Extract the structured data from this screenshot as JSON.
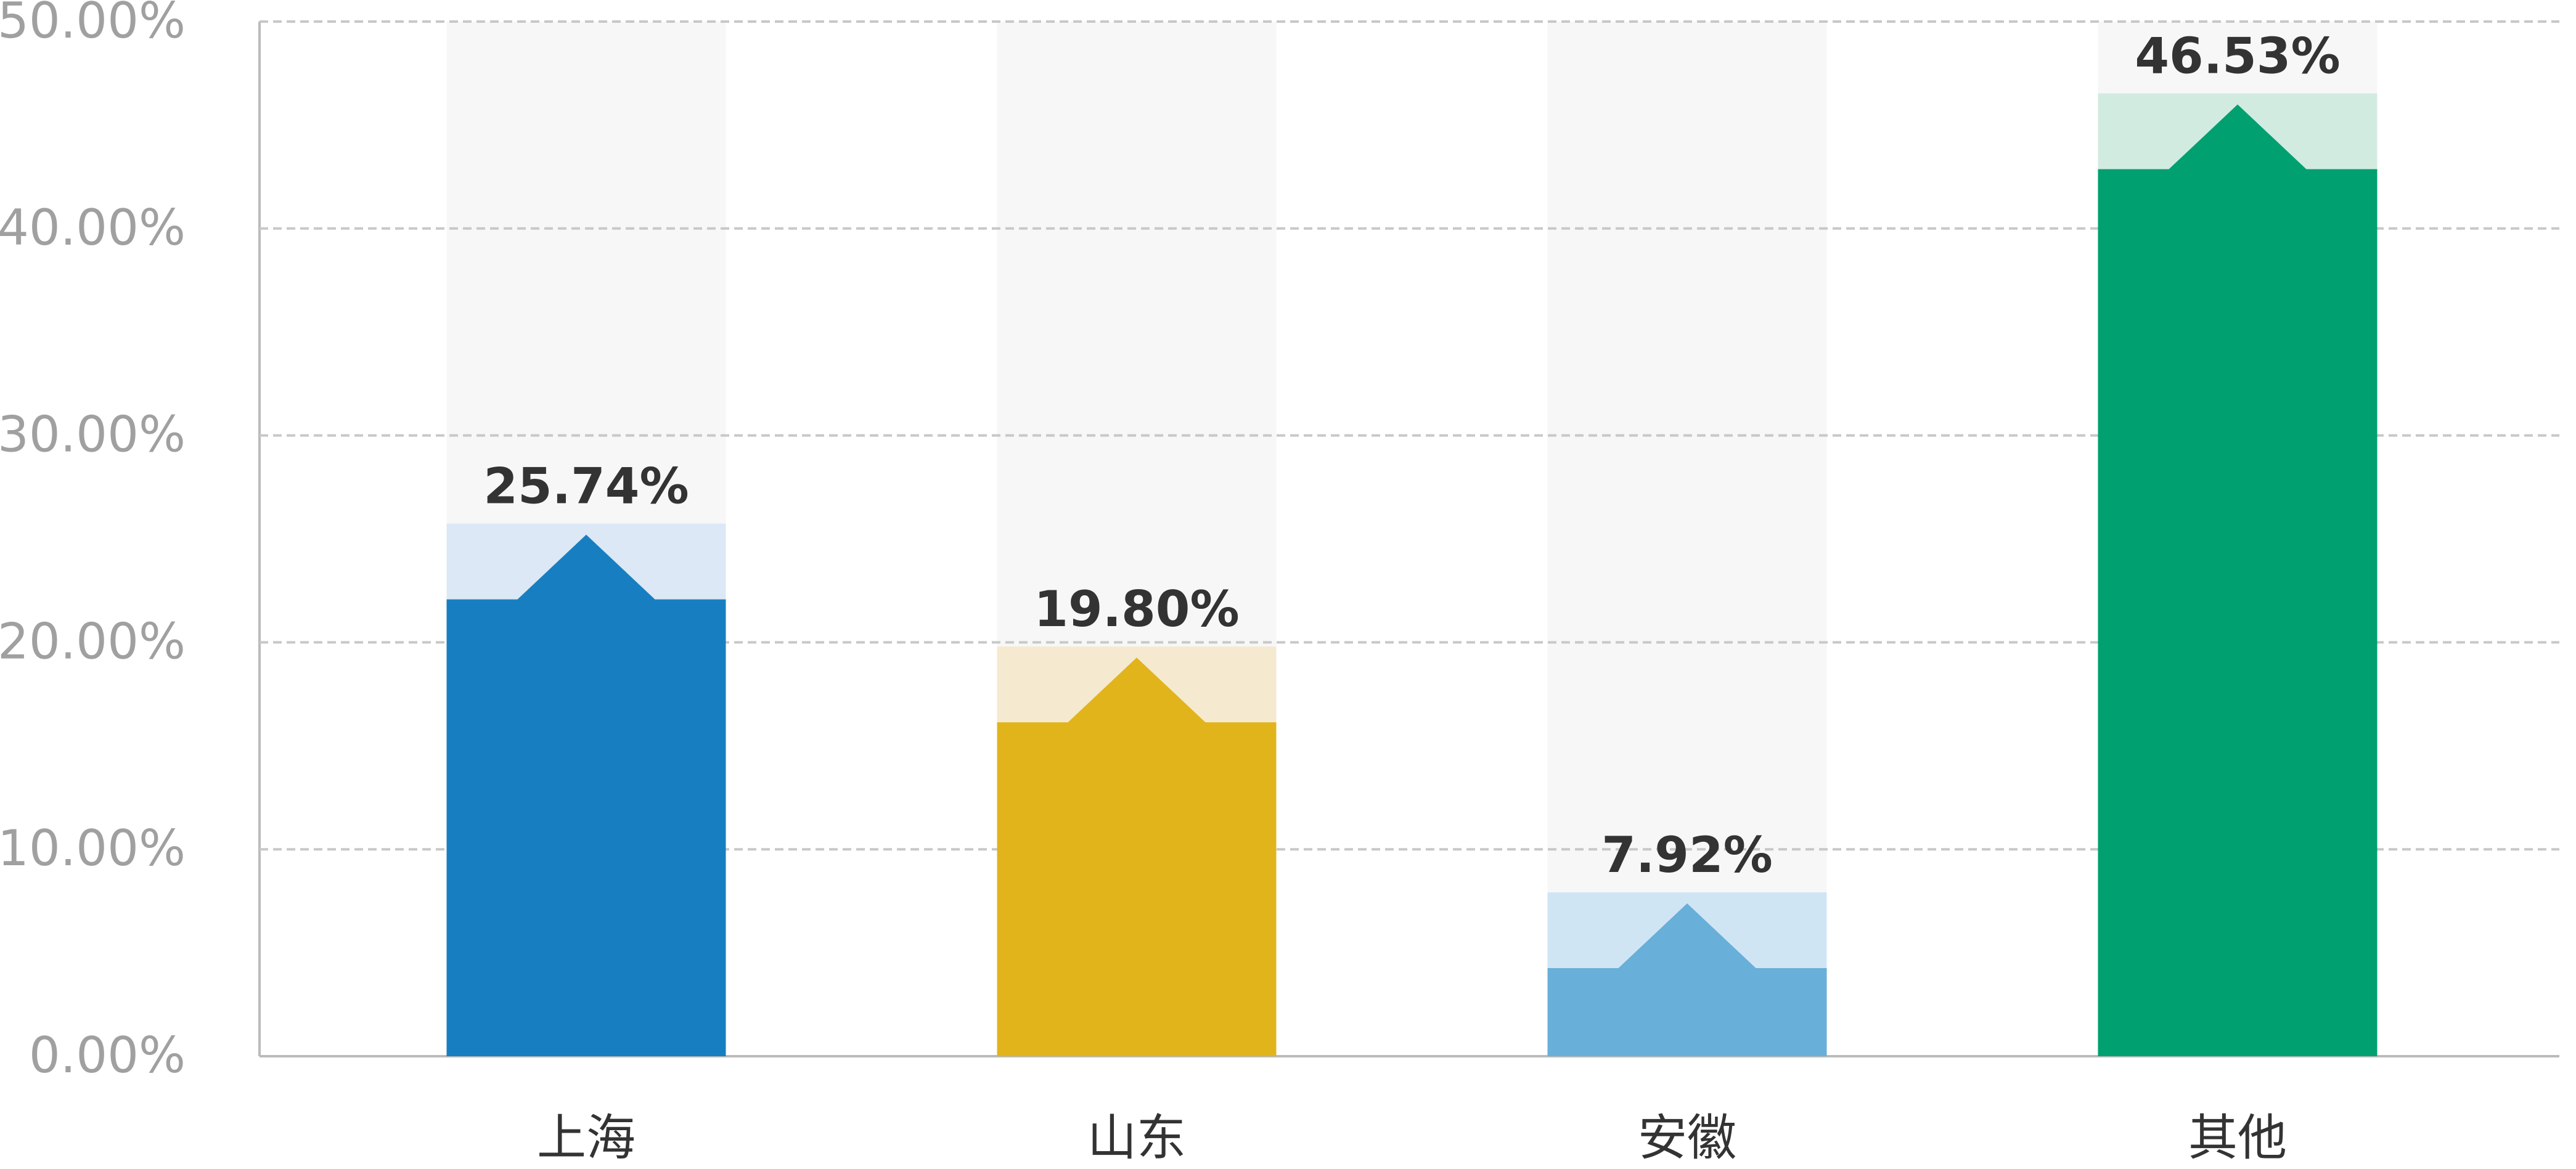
{
  "chart_data": {
    "type": "bar",
    "categories": [
      "上海",
      "山东",
      "安徽",
      "其他"
    ],
    "values": [
      25.74,
      19.8,
      7.92,
      46.53
    ],
    "value_labels": [
      "25.74%",
      "19.80%",
      "7.92%",
      "46.53%"
    ],
    "colors": [
      "#177fc1",
      "#e2b41c",
      "#68afd9",
      "#00a070"
    ],
    "highlight_colors": [
      "#dce8f5",
      "#f5ead0",
      "#d0e5f4",
      "#d2ebe1"
    ],
    "ylim": [
      0,
      50
    ],
    "yticks": [
      {
        "value": 0,
        "label": "0.00%"
      },
      {
        "value": 10,
        "label": "10.00%"
      },
      {
        "value": 20,
        "label": "20.00%"
      },
      {
        "value": 30,
        "label": "30.00%"
      },
      {
        "value": 40,
        "label": "40.00%"
      },
      {
        "value": 50,
        "label": "50.00%"
      }
    ],
    "grid": true
  }
}
